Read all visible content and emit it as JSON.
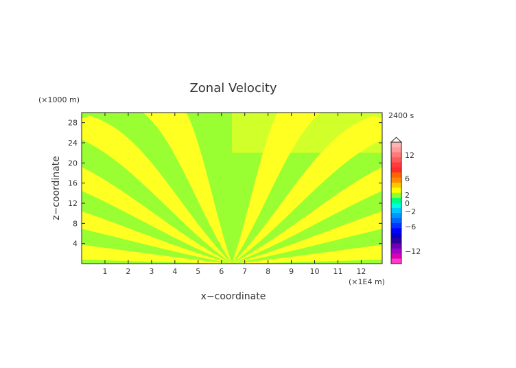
{
  "chart_data": {
    "type": "heatmap",
    "title": "Zonal Velocity",
    "xlabel": "x−coordinate",
    "ylabel": "z−coordinate",
    "x_unit": "(×1E4 m)",
    "y_unit": "(×1000 m)",
    "time_label": "2400 s",
    "x_ticks": [
      "1",
      "2",
      "3",
      "4",
      "5",
      "6",
      "7",
      "8",
      "9",
      "10",
      "11",
      "12"
    ],
    "y_ticks": [
      "4",
      "8",
      "12",
      "16",
      "20",
      "24",
      "28"
    ],
    "xlim": [
      0,
      12.9
    ],
    "ylim": [
      0,
      30
    ],
    "colorbar": {
      "labels": [
        "12",
        "6",
        "2",
        "0",
        "−2",
        "−6",
        "−12"
      ],
      "colors": [
        "#ffb4b4",
        "#ff9b9b",
        "#ff7a7a",
        "#ff5a5a",
        "#ff3b3b",
        "#ff2a2a",
        "#ff6400",
        "#ff8c00",
        "#ffc800",
        "#ffff00",
        "#90ff2b",
        "#00ff7f",
        "#00ffdc",
        "#00c8ff",
        "#0096ff",
        "#0064ff",
        "#0032ff",
        "#0000ff",
        "#0000c8",
        "#30009c",
        "#6c00b4",
        "#a000c8",
        "#dc00b4",
        "#ff3cc8"
      ]
    },
    "field_colors": {
      "positive": "#ffff22",
      "negative": "#99ff33"
    }
  }
}
